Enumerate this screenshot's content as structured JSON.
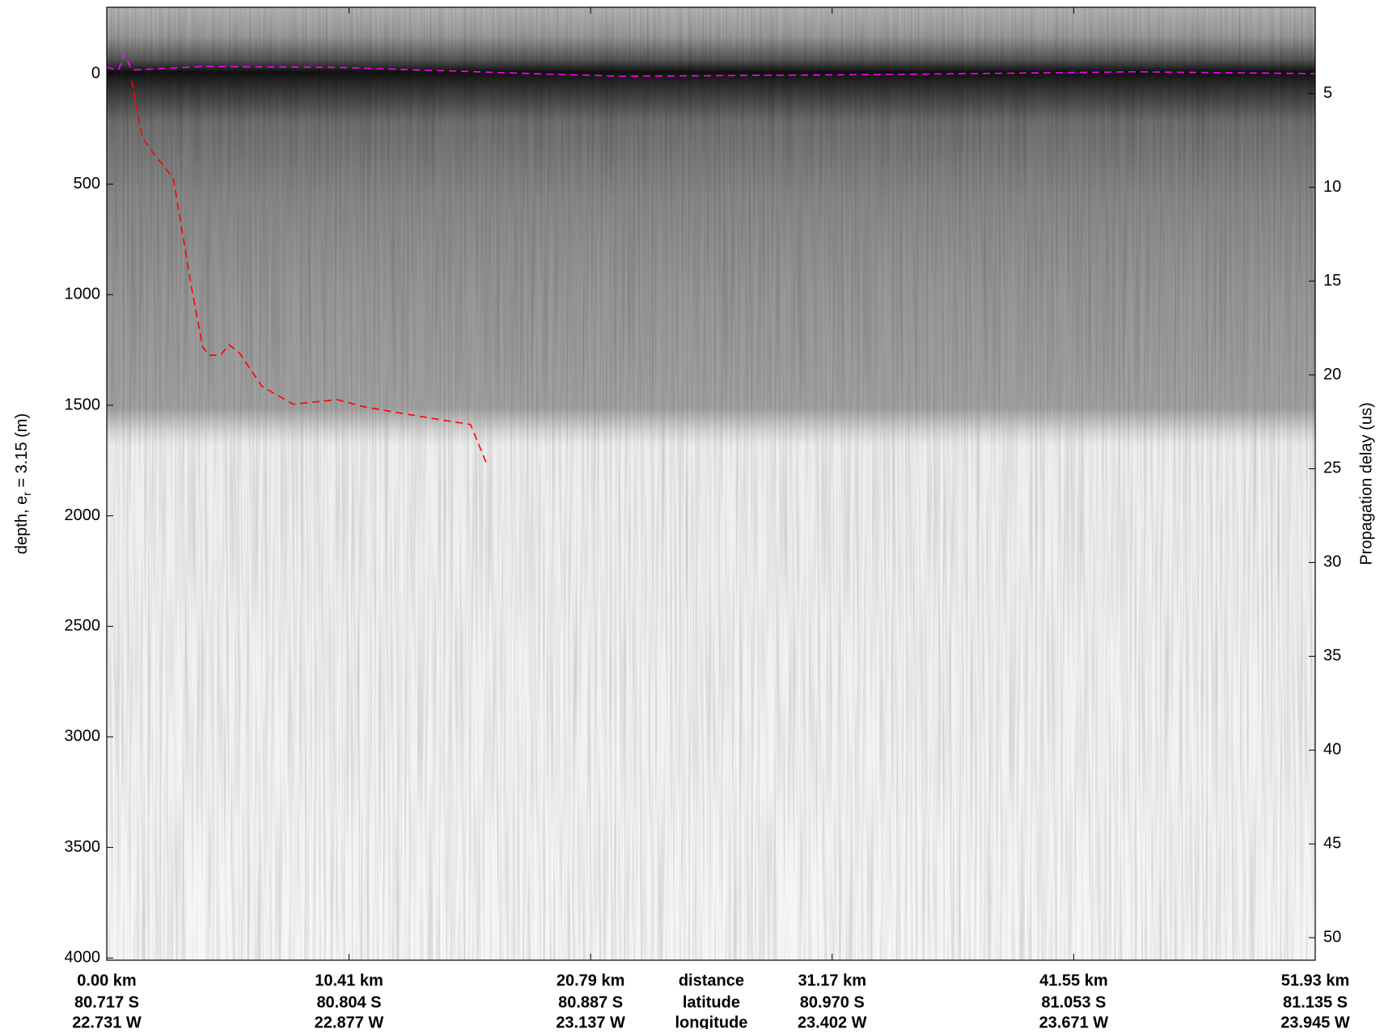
{
  "chart_data": {
    "type": "echogram",
    "y_label": {
      "prefix": "depth, e",
      "subscript": "r",
      "suffix": " = 3.15 (m)"
    },
    "y2_label": "Propagation delay (us)",
    "x_row_titles": [
      "distance",
      "latitude",
      "longitude"
    ],
    "xlim": [
      0,
      51.93
    ],
    "xticks": [
      {
        "value": 0,
        "label": "0.00 km"
      },
      {
        "value": 10.41,
        "label": "10.41 km"
      },
      {
        "value": 20.79,
        "label": "20.79 km"
      },
      {
        "value": 31.17,
        "label": "31.17 km"
      },
      {
        "value": 41.55,
        "label": "41.55 km"
      },
      {
        "value": 51.93,
        "label": "51.93 km"
      }
    ],
    "latitude_labels": [
      "80.717 S",
      "80.804 S",
      "80.887 S",
      "80.970 S",
      "81.053 S",
      "81.135 S"
    ],
    "longitude_labels": [
      "22.731 W",
      "22.877 W",
      "23.137 W",
      "23.402 W",
      "23.671 W",
      "23.945 W"
    ],
    "ylim": [
      -300,
      4010
    ],
    "y_inverted": true,
    "yticks": [
      0,
      500,
      1000,
      1500,
      2000,
      2500,
      3000,
      3500,
      4000
    ],
    "y2lim": [
      0.4,
      51.2
    ],
    "y2ticks": [
      5,
      10,
      15,
      20,
      25,
      30,
      35,
      40,
      45,
      50
    ],
    "series": [
      {
        "color": "#ff00ff",
        "dashed": true,
        "x": [
          0,
          0.5,
          0.76,
          1.07,
          4.19,
          9.91,
          18.3,
          22.12,
          33.55,
          44.23,
          51.93
        ],
        "values": [
          -28,
          -16,
          -88,
          -16,
          -32,
          -28,
          0,
          12,
          4,
          -8,
          0
        ]
      },
      {
        "color": "#ff0000",
        "dashed": true,
        "x": [
          1.07,
          1.53,
          2.1,
          2.86,
          3.24,
          3.62,
          4.12,
          4.38,
          4.88,
          5.26,
          5.72,
          6.67,
          8.01,
          9.91,
          11.06,
          12.58,
          13.73,
          15.63,
          16.32
        ],
        "values": [
          32,
          292,
          372,
          473,
          713,
          954,
          1234,
          1274,
          1274,
          1226,
          1266,
          1415,
          1495,
          1475,
          1507,
          1535,
          1555,
          1587,
          1763
        ]
      }
    ]
  }
}
